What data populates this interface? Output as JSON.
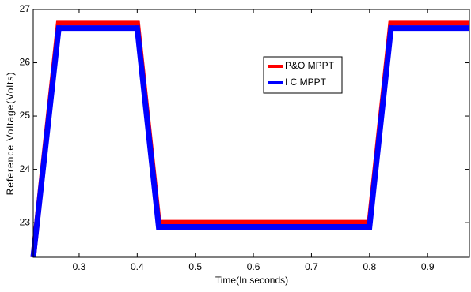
{
  "chart_data": {
    "type": "line",
    "x_label": "Time(In seconds)",
    "y_label": "Reference Voltage(Volts)",
    "x": [
      0.221,
      0.265,
      0.4,
      0.437,
      0.8,
      0.837,
      0.972
    ],
    "series": [
      {
        "name": "P&O MPPT",
        "color": "#ff0000",
        "values": [
          22.35,
          26.75,
          26.75,
          23.0,
          23.0,
          26.75,
          26.75
        ]
      },
      {
        "name": "I C MPPT",
        "color": "#0000ff",
        "values": [
          22.35,
          26.65,
          26.65,
          22.92,
          22.92,
          26.65,
          26.65
        ]
      }
    ],
    "xlim": [
      0.221,
      0.972
    ],
    "xticks": [
      0.3,
      0.4,
      0.5,
      0.6,
      0.7,
      0.8,
      0.9
    ],
    "ylim": [
      22.35,
      27
    ],
    "yticks": [
      23,
      24,
      25,
      26,
      27
    ],
    "grid": false
  }
}
